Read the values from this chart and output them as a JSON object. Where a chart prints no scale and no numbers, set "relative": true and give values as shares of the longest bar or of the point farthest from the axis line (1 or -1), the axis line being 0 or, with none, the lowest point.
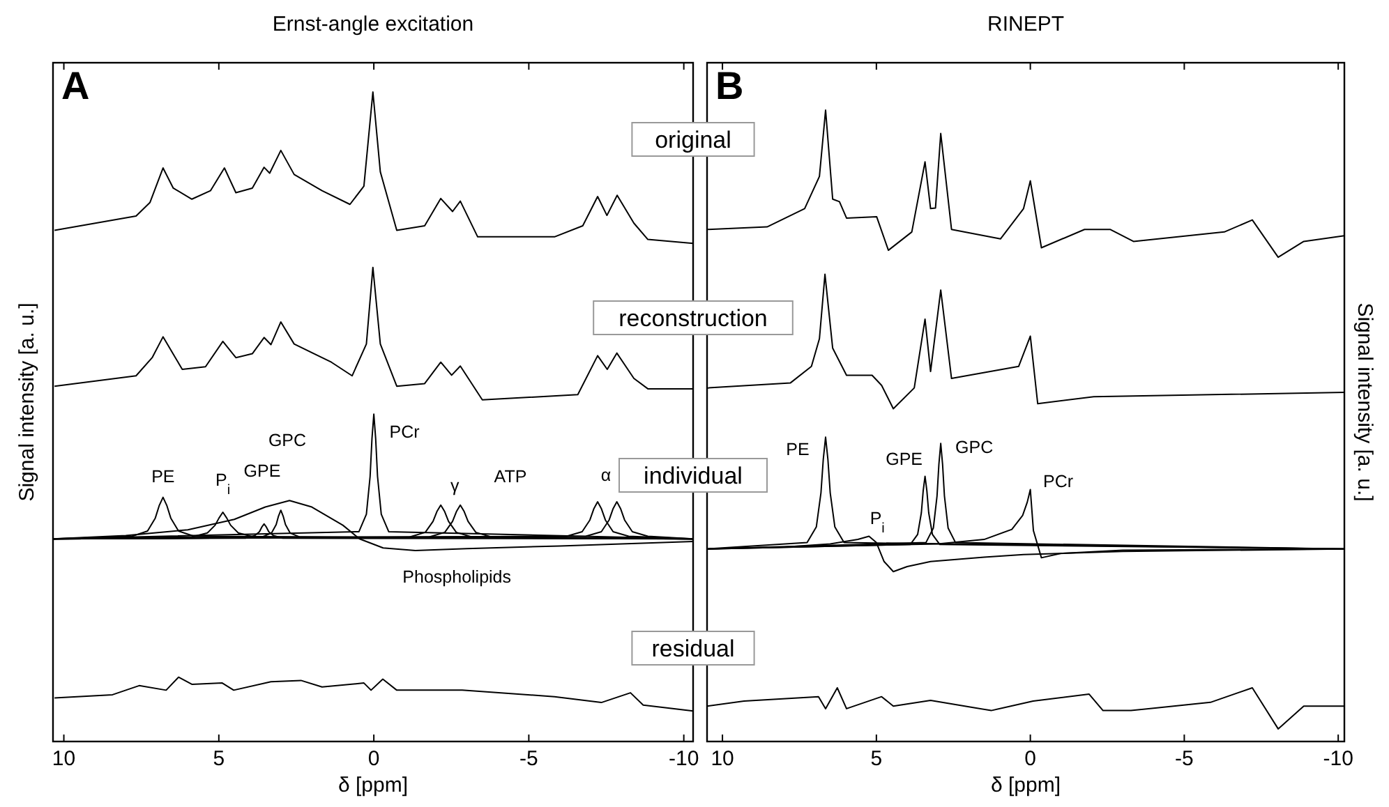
{
  "chart_data": [
    {
      "type": "line",
      "relative": true,
      "title": "Ernst-angle excitation",
      "xlabel": "δ [ppm]",
      "ylabel": "Signal intensity [a. u.]",
      "xlim": [
        10.35,
        -10.3
      ],
      "xticks": [
        10,
        5,
        0,
        -5,
        -10
      ],
      "annotations": [
        "A",
        "individual",
        "ATP",
        "GPE",
        "GPC"
      ],
      "series": [
        {
          "name": "original",
          "color": "#000000",
          "x": [
            10.3,
            7.67,
            7.22,
            6.8,
            6.47,
            5.87,
            5.27,
            4.82,
            4.45,
            3.92,
            3.54,
            3.36,
            3.0,
            2.57,
            1.67,
            0.77,
            0.32,
            0.03,
            -0.21,
            -0.74,
            -1.64,
            -2.16,
            -2.54,
            -2.79,
            -3.35,
            -5.83,
            -6.74,
            -7.22,
            -7.52,
            -7.85,
            -8.39,
            -8.84,
            -10.3
          ],
          "values": [
            0.787,
            0.809,
            0.83,
            0.883,
            0.852,
            0.835,
            0.848,
            0.883,
            0.845,
            0.852,
            0.884,
            0.875,
            0.91,
            0.873,
            0.848,
            0.827,
            0.855,
            1.0,
            0.877,
            0.787,
            0.794,
            0.836,
            0.816,
            0.832,
            0.777,
            0.777,
            0.794,
            0.839,
            0.81,
            0.841,
            0.798,
            0.773,
            0.767
          ]
        },
        {
          "name": "reconstruction",
          "color": "#000000",
          "x": [
            10.3,
            7.67,
            7.15,
            6.8,
            6.18,
            5.43,
            4.87,
            4.45,
            3.92,
            3.54,
            3.32,
            3.0,
            2.57,
            1.37,
            0.7,
            0.24,
            0.03,
            -0.21,
            -0.74,
            -1.64,
            -2.16,
            -2.51,
            -2.79,
            -3.5,
            -6.58,
            -7.22,
            -7.53,
            -7.84,
            -8.39,
            -8.84,
            -10.3
          ],
          "values": [
            0.547,
            0.563,
            0.591,
            0.623,
            0.573,
            0.577,
            0.616,
            0.591,
            0.597,
            0.622,
            0.611,
            0.646,
            0.612,
            0.584,
            0.563,
            0.612,
            0.73,
            0.612,
            0.547,
            0.551,
            0.584,
            0.564,
            0.578,
            0.526,
            0.534,
            0.594,
            0.573,
            0.598,
            0.559,
            0.543,
            0.543
          ]
        },
        {
          "name": "PE",
          "color": "#000000",
          "x": [
            10.35,
            7.8,
            7.3,
            7.05,
            6.925,
            6.8,
            6.675,
            6.55,
            6.3,
            5.8,
            -10.3
          ],
          "values": [
            0.312,
            0.316,
            0.324,
            0.344,
            0.363,
            0.376,
            0.363,
            0.344,
            0.324,
            0.316,
            0.312
          ]
        },
        {
          "name": "P$_{i}$",
          "color": "#000000",
          "x": [
            10.35,
            5.87,
            5.37,
            5.12,
            4.995,
            4.87,
            4.745,
            4.62,
            4.37,
            3.87,
            -10.3
          ],
          "values": [
            0.312,
            0.315,
            0.321,
            0.333,
            0.344,
            0.353,
            0.344,
            0.333,
            0.321,
            0.315,
            0.312
          ]
        },
        {
          "color": "#000000",
          "x": [
            10.35,
            4.14,
            3.84,
            3.69,
            3.615,
            3.54,
            3.465,
            3.39,
            3.24,
            2.94,
            -10.3
          ],
          "values": [
            0.312,
            0.313,
            0.317,
            0.323,
            0.33,
            0.335,
            0.33,
            0.323,
            0.317,
            0.313,
            0.312
          ]
        },
        {
          "color": "#000000",
          "x": [
            10.35,
            3.6,
            3.3,
            3.15,
            3.075,
            3.0,
            2.925,
            2.85,
            2.7,
            2.4,
            -10.3
          ],
          "values": [
            0.312,
            0.315,
            0.321,
            0.334,
            0.347,
            0.356,
            0.347,
            0.334,
            0.321,
            0.315,
            0.312
          ]
        },
        {
          "name": "PCr",
          "color": "#000000",
          "x": [
            10.35,
            0.48,
            0.24,
            0.12,
            0.06,
            0,
            -0.06,
            -0.12,
            -0.24,
            -0.48,
            -10.3
          ],
          "values": [
            0.312,
            0.323,
            0.35,
            0.408,
            0.466,
            0.504,
            0.466,
            0.408,
            0.35,
            0.323,
            0.312
          ]
        },
        {
          "name": "γ",
          "color": "#000000",
          "x": [
            10.35,
            -1.16,
            -1.66,
            -1.91,
            -2.035,
            -2.16,
            -2.285,
            -2.41,
            -2.66,
            -3.16,
            -10.3
          ],
          "values": [
            0.312,
            0.315,
            0.322,
            0.339,
            0.354,
            0.364,
            0.354,
            0.339,
            0.322,
            0.315,
            0.312
          ]
        },
        {
          "color": "#000000",
          "x": [
            10.35,
            -1.79,
            -2.29,
            -2.54,
            -2.665,
            -2.79,
            -2.915,
            -3.04,
            -3.29,
            -3.79,
            -10.3
          ],
          "values": [
            0.312,
            0.315,
            0.322,
            0.339,
            0.354,
            0.364,
            0.354,
            0.339,
            0.322,
            0.315,
            0.312
          ]
        },
        {
          "name": "α",
          "color": "#000000",
          "x": [
            10.35,
            -6.22,
            -6.72,
            -6.97,
            -7.095,
            -7.22,
            -7.345,
            -7.47,
            -7.72,
            -8.22,
            -10.3
          ],
          "values": [
            0.312,
            0.316,
            0.323,
            0.341,
            0.358,
            0.369,
            0.358,
            0.341,
            0.323,
            0.316,
            0.312
          ]
        },
        {
          "color": "#000000",
          "x": [
            10.35,
            -6.84,
            -7.34,
            -7.59,
            -7.715,
            -7.84,
            -7.965,
            -8.09,
            -8.34,
            -8.84,
            -10.3
          ],
          "values": [
            0.312,
            0.316,
            0.323,
            0.341,
            0.358,
            0.369,
            0.358,
            0.341,
            0.323,
            0.316,
            0.312
          ]
        },
        {
          "name": "Phospholipids",
          "color": "#000000",
          "x": [
            10.35,
            8,
            6,
            4.5,
            3.5,
            2.72,
            2,
            1,
            0.46,
            -0.3,
            -1.34,
            -3,
            -6,
            -10.3
          ],
          "values": [
            0.312,
            0.317,
            0.326,
            0.342,
            0.361,
            0.371,
            0.361,
            0.333,
            0.312,
            0.298,
            0.294,
            0.297,
            0.301,
            0.308
          ]
        },
        {
          "name": "residual",
          "color": "#000000",
          "x": [
            10.3,
            8.43,
            7.57,
            6.7,
            6.3,
            5.87,
            4.89,
            4.52,
            3.32,
            2.35,
            1.67,
            0.32,
            0.09,
            -0.29,
            -0.74,
            -2.85,
            -5.83,
            -7.34,
            -8.28,
            -8.69,
            -10.3
          ],
          "values": [
            0.067,
            0.072,
            0.086,
            0.079,
            0.099,
            0.088,
            0.09,
            0.079,
            0.092,
            0.094,
            0.084,
            0.09,
            0.079,
            0.096,
            0.079,
            0.079,
            0.069,
            0.06,
            0.075,
            0.056,
            0.047
          ]
        }
      ]
    },
    {
      "type": "line",
      "relative": true,
      "title": "RINEPT",
      "xlabel": "δ [ppm]",
      "ylabel": "Signal intensity [a. u.]",
      "xlim": [
        10.5,
        -10.2
      ],
      "xticks": [
        10,
        5,
        0,
        -5,
        -10
      ],
      "annotations": [
        "B"
      ],
      "series": [
        {
          "color": "#000000",
          "x": [
            10.5,
            8.55,
            7.33,
            6.85,
            6.65,
            6.42,
            6.2,
            5.97,
            4.99,
            4.61,
            3.85,
            3.42,
            3.24,
            3.08,
            2.91,
            2.56,
            0.97,
            0.22,
            0,
            -0.36,
            -1.76,
            -2.59,
            -3.35,
            -6.3,
            -7.21,
            -8.05,
            -8.88,
            -10.2
          ],
          "values": [
            0.811,
            0.815,
            0.844,
            0.895,
            1.0,
            0.859,
            0.855,
            0.829,
            0.831,
            0.778,
            0.807,
            0.918,
            0.844,
            0.845,
            0.963,
            0.811,
            0.796,
            0.844,
            0.888,
            0.782,
            0.811,
            0.811,
            0.792,
            0.807,
            0.826,
            0.767,
            0.792,
            0.801
          ]
        },
        {
          "color": "#000000",
          "x": [
            10.5,
            7.79,
            7.11,
            6.85,
            6.67,
            6.42,
            5.97,
            5.14,
            4.83,
            4.45,
            3.77,
            3.42,
            3.24,
            2.91,
            2.56,
            0.38,
            0,
            -0.24,
            -2.06,
            -10.2
          ],
          "values": [
            0.56,
            0.568,
            0.594,
            0.638,
            0.74,
            0.623,
            0.58,
            0.58,
            0.564,
            0.527,
            0.56,
            0.669,
            0.586,
            0.715,
            0.575,
            0.594,
            0.642,
            0.535,
            0.546,
            0.553
          ]
        },
        {
          "name": "PE",
          "color": "#000000",
          "x": [
            10.5,
            7.25,
            6.95,
            6.8,
            6.725,
            6.65,
            6.575,
            6.5,
            6.35,
            6.05,
            -10.2
          ],
          "values": [
            0.305,
            0.315,
            0.34,
            0.394,
            0.447,
            0.482,
            0.447,
            0.394,
            0.34,
            0.315,
            0.305
          ]
        },
        {
          "name": "P$_{i}$",
          "color": "#000000",
          "x": [
            10.5,
            8,
            6.5,
            5.6,
            5.24,
            5.0,
            4.75,
            4.45,
            4.0,
            3.24,
            1.5,
            0.22,
            -3,
            -10.2
          ],
          "values": [
            0.305,
            0.308,
            0.313,
            0.32,
            0.325,
            0.315,
            0.285,
            0.269,
            0.277,
            0.285,
            0.292,
            0.296,
            0.301,
            0.305
          ]
        },
        {
          "name": "GPE",
          "color": "#000000",
          "x": [
            10.5,
            3.9,
            3.66,
            3.54,
            3.48,
            3.42,
            3.36,
            3.3,
            3.18,
            2.94,
            -10.2
          ],
          "values": [
            0.305,
            0.312,
            0.328,
            0.362,
            0.397,
            0.42,
            0.397,
            0.362,
            0.328,
            0.312,
            0.305
          ]
        },
        {
          "name": "GPC",
          "color": "#000000",
          "x": [
            10.5,
            3.39,
            3.15,
            3.03,
            2.97,
            2.91,
            2.85,
            2.79,
            2.67,
            2.43,
            -10.2
          ],
          "values": [
            0.305,
            0.315,
            0.338,
            0.389,
            0.439,
            0.472,
            0.439,
            0.389,
            0.338,
            0.315,
            0.305
          ]
        },
        {
          "name": "PCr",
          "color": "#000000",
          "x": [
            10.5,
            3,
            1.5,
            0.6,
            0.25,
            0.1,
            0,
            -0.1,
            -0.36,
            -1,
            -3,
            -10.2
          ],
          "values": [
            0.305,
            0.313,
            0.32,
            0.336,
            0.358,
            0.379,
            0.399,
            0.334,
            0.291,
            0.298,
            0.303,
            0.305
          ]
        },
        {
          "color": "#000000",
          "x": [
            10.5,
            9.3,
            6.88,
            6.65,
            6.27,
            5.97,
            4.83,
            4.45,
            3.24,
            1.27,
            -0.09,
            -1.91,
            -2.36,
            -3.27,
            -5.85,
            -7.21,
            -8.05,
            -8.88,
            -10.2
          ],
          "values": [
            0.056,
            0.064,
            0.071,
            0.052,
            0.085,
            0.052,
            0.071,
            0.056,
            0.065,
            0.049,
            0.064,
            0.075,
            0.049,
            0.049,
            0.062,
            0.085,
            0.02,
            0.056,
            0.056
          ]
        }
      ]
    }
  ]
}
